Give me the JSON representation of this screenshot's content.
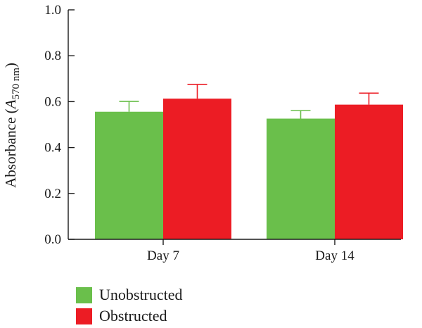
{
  "chart_data": {
    "type": "bar",
    "title": "",
    "xlabel": "",
    "ylabel": "Absorbance (A570 nm)",
    "ylabel_parts": {
      "prefix": "Absorbance (",
      "symbol": "A",
      "subscript": "570 nm",
      "suffix": ")"
    },
    "ylim": [
      0.0,
      1.0
    ],
    "yticks": [
      "0.0",
      "0.2",
      "0.4",
      "0.6",
      "0.8",
      "1.0"
    ],
    "categories": [
      "Day 7",
      "Day 14"
    ],
    "series": [
      {
        "name": "Unobstructed",
        "color": "#6abf4b",
        "values": [
          0.556,
          0.526
        ],
        "errors": [
          0.045,
          0.035
        ]
      },
      {
        "name": "Obstructed",
        "color": "#ec1c24",
        "values": [
          0.613,
          0.587
        ],
        "errors": [
          0.062,
          0.05
        ]
      }
    ],
    "legend_position": "bottom-left",
    "grid": false
  }
}
